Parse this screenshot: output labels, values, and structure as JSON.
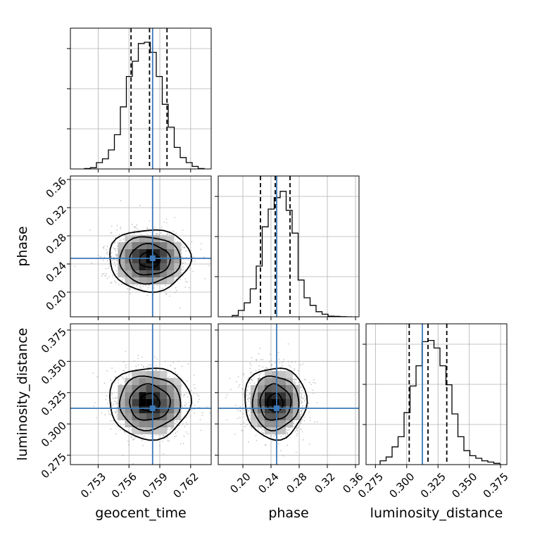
{
  "chart_data": {
    "type": "corner",
    "colors": {
      "truth": "#3b78b8",
      "hist": "#000000",
      "grid": "#b0b0b0",
      "scatter": "#9a9a9a"
    },
    "grid": true,
    "parameters": [
      {
        "name": "geocent_time",
        "label": "geocent_time",
        "range": [
          0.7503,
          0.764
        ],
        "ticks": [
          0.753,
          0.756,
          0.759,
          0.762
        ],
        "tick_labels": [
          "0.753",
          "0.756",
          "0.759",
          "0.762"
        ],
        "truth": 0.7583,
        "quantiles": [
          0.7562,
          0.758,
          0.7597
        ],
        "hist_density": [
          0.003,
          0.01,
          0.05,
          0.08,
          0.15,
          0.27,
          0.49,
          0.73,
          0.85,
          0.99,
          1.0,
          0.92,
          0.73,
          0.51,
          0.33,
          0.17,
          0.09,
          0.05,
          0.02,
          0.003
        ]
      },
      {
        "name": "phase",
        "label": "phase",
        "range": [
          0.165,
          0.365
        ],
        "ticks": [
          0.2,
          0.24,
          0.28,
          0.32,
          0.36
        ],
        "tick_labels": [
          "0.20",
          "0.24",
          "0.28",
          "0.32",
          "0.36"
        ],
        "truth": 0.248,
        "quantiles": [
          0.225,
          0.246,
          0.267
        ],
        "hist_density": [
          0.01,
          0.05,
          0.11,
          0.22,
          0.4,
          0.71,
          0.85,
          0.94,
          0.99,
          0.84,
          0.66,
          0.29,
          0.15,
          0.09,
          0.04,
          0.02,
          0.005,
          0.003,
          0.001,
          0.0
        ]
      },
      {
        "name": "luminosity_distance",
        "label": "luminosity_distance",
        "range": [
          0.2675,
          0.38
        ],
        "ticks": [
          0.275,
          0.3,
          0.325,
          0.35,
          0.375
        ],
        "tick_labels": [
          "0.275",
          "0.300",
          "0.325",
          "0.350",
          "0.375"
        ],
        "truth": 0.3125,
        "quantiles": [
          0.302,
          0.317,
          0.332
        ],
        "hist_density": [
          0.03,
          0.06,
          0.14,
          0.22,
          0.41,
          0.62,
          0.78,
          0.97,
          0.98,
          0.92,
          0.78,
          0.63,
          0.4,
          0.22,
          0.11,
          0.07,
          0.05,
          0.03,
          0.02,
          0.01
        ]
      }
    ],
    "pairs": [
      {
        "x": "geocent_time",
        "y": "phase",
        "center": [
          0.758,
          0.246
        ],
        "sigma": [
          0.0018,
          0.02
        ],
        "rho": 0.0
      },
      {
        "x": "geocent_time",
        "y": "luminosity_distance",
        "center": [
          0.758,
          0.317
        ],
        "sigma": [
          0.0018,
          0.013
        ],
        "rho": 0.0
      },
      {
        "x": "phase",
        "y": "luminosity_distance",
        "center": [
          0.246,
          0.317
        ],
        "sigma": [
          0.02,
          0.013
        ],
        "rho": 0.0
      }
    ]
  }
}
